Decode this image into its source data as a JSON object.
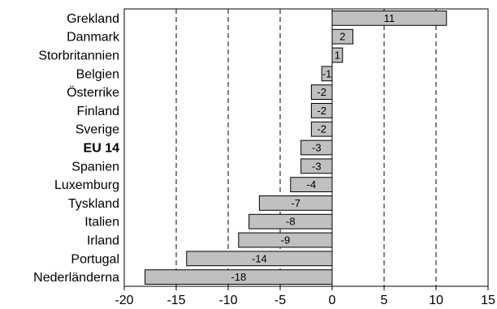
{
  "chart_data": {
    "type": "bar",
    "orientation": "horizontal",
    "title": "",
    "xlabel": "",
    "ylabel": "",
    "categories": [
      "Grekland",
      "Danmark",
      "Storbritannien",
      "Belgien",
      "Österrike",
      "Finland",
      "Sverige",
      "EU 14",
      "Spanien",
      "Luxemburg",
      "Tyskland",
      "Italien",
      "Irland",
      "Portugal",
      "Nederländerna"
    ],
    "values": [
      11,
      2,
      1,
      -1,
      -2,
      -2,
      -2,
      -3,
      -3,
      -4,
      -7,
      -8,
      -9,
      -14,
      -18
    ],
    "data_labels": [
      "11",
      "2",
      "1",
      "-1",
      "-2",
      "-2",
      "-2",
      "-3",
      "-3",
      "-4",
      "-7",
      "-8",
      "-9",
      "-14",
      "-18"
    ],
    "highlighted_category": "EU 14",
    "xlim": [
      -20,
      15
    ],
    "xticks": [
      -20,
      -15,
      -10,
      -5,
      0,
      5,
      10,
      15
    ],
    "xtick_labels": [
      "-20",
      "-15",
      "-10",
      "-5",
      "0",
      "5",
      "10",
      "15"
    ],
    "gridlines": "dashed vertical",
    "bar_color": "#c0c0c0",
    "bar_edge_color": "#000000",
    "legend": "none"
  }
}
